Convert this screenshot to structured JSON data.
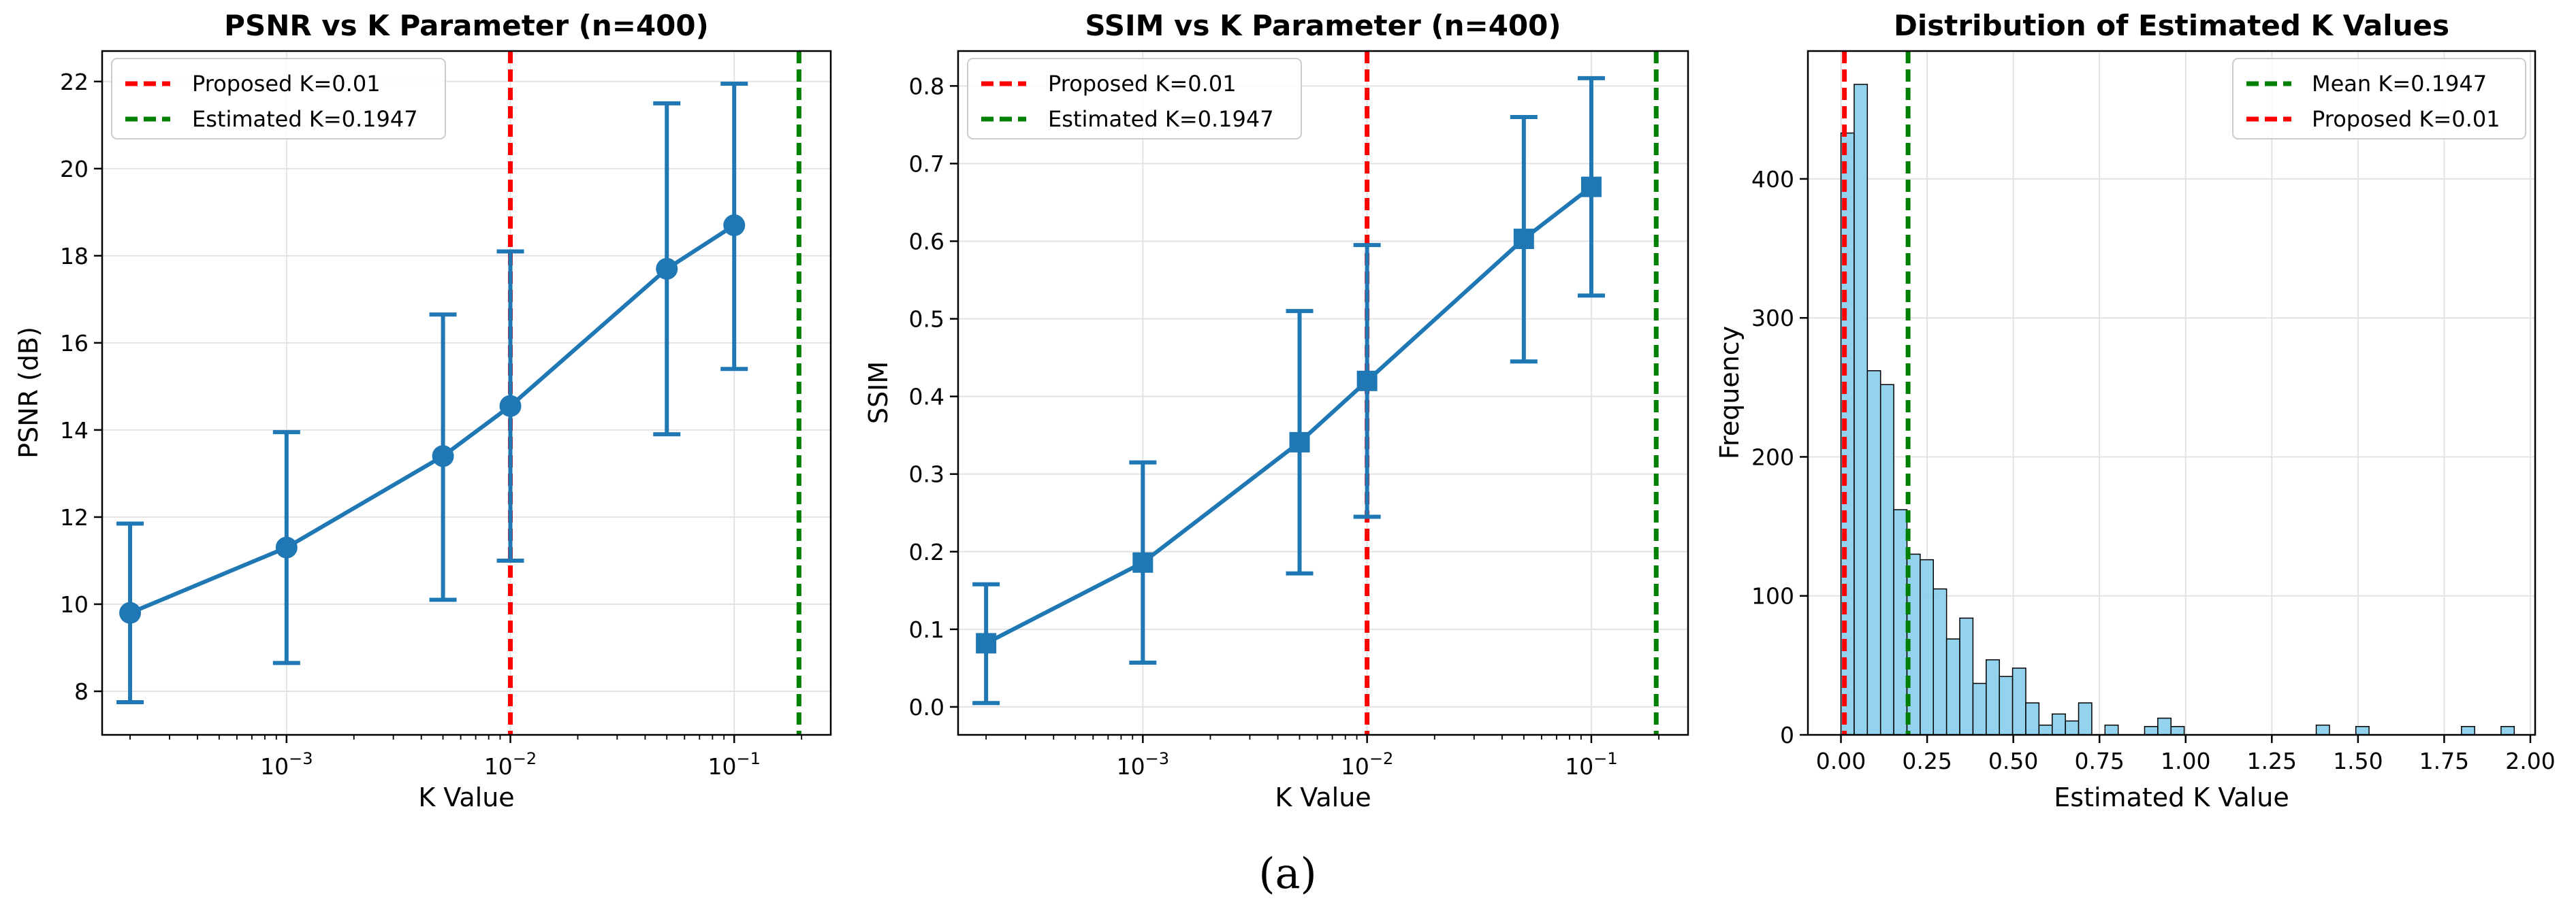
{
  "figure": {
    "caption": "(a)"
  },
  "chart_data": [
    {
      "type": "line",
      "title": "PSNR vs K Parameter (n=400)",
      "xlabel": "K Value",
      "ylabel": "PSNR (dB)",
      "xscale": "log",
      "xlim": [
        0.00015,
        0.27
      ],
      "ylim": [
        7.0,
        22.7
      ],
      "xticks": [
        {
          "value": 0.001,
          "base": "10",
          "exp": "−3"
        },
        {
          "value": 0.01,
          "base": "10",
          "exp": "−2"
        },
        {
          "value": 0.1,
          "base": "10",
          "exp": "−1"
        }
      ],
      "yticks": [
        {
          "value": 8,
          "label": "8"
        },
        {
          "value": 10,
          "label": "10"
        },
        {
          "value": 12,
          "label": "12"
        },
        {
          "value": 14,
          "label": "14"
        },
        {
          "value": 16,
          "label": "16"
        },
        {
          "value": 18,
          "label": "18"
        },
        {
          "value": 20,
          "label": "20"
        },
        {
          "value": 22,
          "label": "22"
        }
      ],
      "grid": true,
      "marker": "circle",
      "series_color": "#1f77b4",
      "series": [
        {
          "x": 0.0002,
          "y": 9.8,
          "err_low": 7.75,
          "err_high": 11.85
        },
        {
          "x": 0.001,
          "y": 11.3,
          "err_low": 8.65,
          "err_high": 13.95
        },
        {
          "x": 0.005,
          "y": 13.4,
          "err_low": 10.1,
          "err_high": 16.65
        },
        {
          "x": 0.01,
          "y": 14.55,
          "err_low": 11.0,
          "err_high": 18.1
        },
        {
          "x": 0.05,
          "y": 17.7,
          "err_low": 13.9,
          "err_high": 21.5
        },
        {
          "x": 0.1,
          "y": 18.7,
          "err_low": 15.4,
          "err_high": 21.95
        }
      ],
      "vlines": [
        {
          "x": 0.01,
          "color": "#ff0000",
          "label": "Proposed K=0.01"
        },
        {
          "x": 0.1947,
          "color": "#008000",
          "label": "Estimated K=0.1947"
        }
      ],
      "legend_position": "top-left"
    },
    {
      "type": "line",
      "title": "SSIM vs K Parameter (n=400)",
      "xlabel": "K Value",
      "ylabel": "SSIM",
      "xscale": "log",
      "xlim": [
        0.00015,
        0.27
      ],
      "ylim": [
        -0.036,
        0.845
      ],
      "xticks": [
        {
          "value": 0.001,
          "base": "10",
          "exp": "−3"
        },
        {
          "value": 0.01,
          "base": "10",
          "exp": "−2"
        },
        {
          "value": 0.1,
          "base": "10",
          "exp": "−1"
        }
      ],
      "yticks": [
        {
          "value": 0.0,
          "label": "0.0"
        },
        {
          "value": 0.1,
          "label": "0.1"
        },
        {
          "value": 0.2,
          "label": "0.2"
        },
        {
          "value": 0.3,
          "label": "0.3"
        },
        {
          "value": 0.4,
          "label": "0.4"
        },
        {
          "value": 0.5,
          "label": "0.5"
        },
        {
          "value": 0.6,
          "label": "0.6"
        },
        {
          "value": 0.7,
          "label": "0.7"
        },
        {
          "value": 0.8,
          "label": "0.8"
        }
      ],
      "grid": true,
      "marker": "square",
      "series_color": "#1f77b4",
      "series": [
        {
          "x": 0.0002,
          "y": 0.082,
          "err_low": 0.005,
          "err_high": 0.158
        },
        {
          "x": 0.001,
          "y": 0.186,
          "err_low": 0.057,
          "err_high": 0.315
        },
        {
          "x": 0.005,
          "y": 0.341,
          "err_low": 0.172,
          "err_high": 0.51
        },
        {
          "x": 0.01,
          "y": 0.42,
          "err_low": 0.245,
          "err_high": 0.595
        },
        {
          "x": 0.05,
          "y": 0.603,
          "err_low": 0.445,
          "err_high": 0.76
        },
        {
          "x": 0.1,
          "y": 0.67,
          "err_low": 0.53,
          "err_high": 0.81
        }
      ],
      "vlines": [
        {
          "x": 0.01,
          "color": "#ff0000",
          "label": "Proposed K=0.01"
        },
        {
          "x": 0.1947,
          "color": "#008000",
          "label": "Estimated K=0.1947"
        }
      ],
      "legend_position": "top-left"
    },
    {
      "type": "histogram",
      "title": "Distribution of Estimated K Values",
      "xlabel": "Estimated K Value",
      "ylabel": "Frequency",
      "xlim": [
        -0.0959,
        2.0139
      ],
      "ylim": [
        0,
        492
      ],
      "xticks": [
        {
          "value": 0.0,
          "label": "0.00"
        },
        {
          "value": 0.25,
          "label": "0.25"
        },
        {
          "value": 0.5,
          "label": "0.50"
        },
        {
          "value": 0.75,
          "label": "0.75"
        },
        {
          "value": 1.0,
          "label": "1.00"
        },
        {
          "value": 1.25,
          "label": "1.25"
        },
        {
          "value": 1.5,
          "label": "1.50"
        },
        {
          "value": 1.75,
          "label": "1.75"
        },
        {
          "value": 2.0,
          "label": "2.00"
        }
      ],
      "yticks": [
        {
          "value": 0,
          "label": "0"
        },
        {
          "value": 100,
          "label": "100"
        },
        {
          "value": 200,
          "label": "200"
        },
        {
          "value": 300,
          "label": "300"
        },
        {
          "value": 400,
          "label": "400"
        }
      ],
      "grid": true,
      "bar_color": "#87ceeb",
      "bin_start": 0.0,
      "bin_width": 0.0383,
      "counts": [
        433,
        468,
        262,
        252,
        162,
        130,
        126,
        105,
        69,
        84,
        37,
        54,
        42,
        48,
        23,
        7,
        15,
        10,
        23,
        0,
        7,
        0,
        0,
        6,
        12,
        6,
        0,
        0,
        0,
        0,
        0,
        0,
        0,
        0,
        0,
        0,
        7,
        0,
        0,
        6,
        0,
        0,
        0,
        0,
        0,
        0,
        0,
        6,
        0,
        0,
        6
      ],
      "vlines": [
        {
          "x": 0.1947,
          "color": "#008000",
          "label": "Mean K=0.1947"
        },
        {
          "x": 0.01,
          "color": "#ff0000",
          "label": "Proposed K=0.01"
        }
      ],
      "legend_position": "top-right"
    }
  ]
}
